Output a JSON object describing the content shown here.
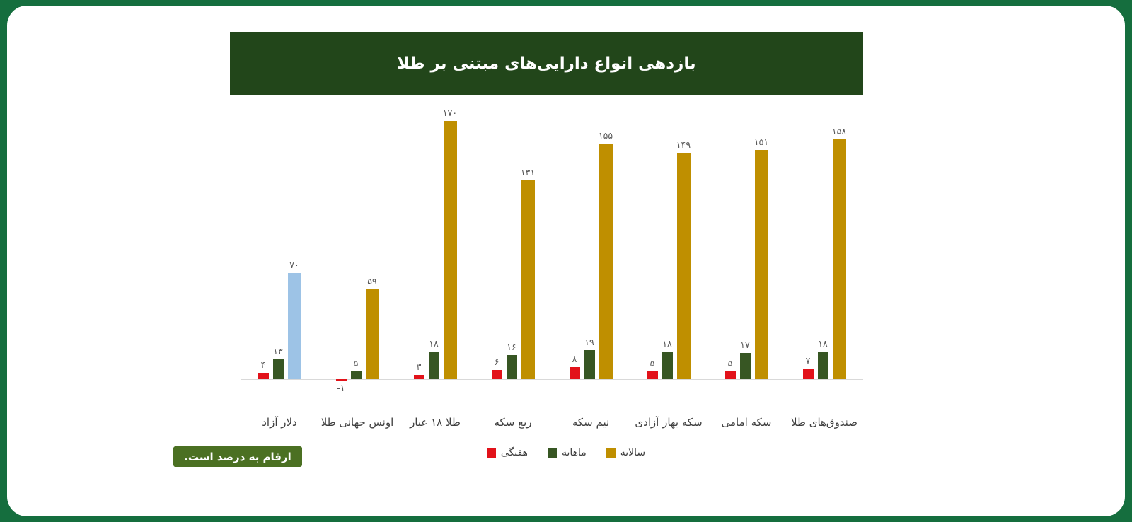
{
  "page": {
    "title": "بازدهی انواع دارایی‌های مبتنی بر طلا",
    "note": "ارقام به درصد است.",
    "colors": {
      "frame": "#156e3e",
      "card": "#ffffff",
      "title_bar": "#22461a",
      "note_box": "#4b7022",
      "axis_line": "#d9d9d9",
      "value_label": "#595959",
      "category_label": "#3f3f3f"
    }
  },
  "chart_data": {
    "type": "bar",
    "title": "بازدهی انواع دارایی‌های مبتنی بر طلا",
    "unit": "percent",
    "grid": false,
    "legend_position": "bottom",
    "ylim": [
      -5,
      175
    ],
    "categories": [
      "دلار آزاد",
      "اونس جهانی طلا",
      "طلا ۱۸ عیار",
      "ربع سکه",
      "نیم سکه",
      "سکه بهار آزادی",
      "سکه امامی",
      "صندوق‌های طلا"
    ],
    "series": [
      {
        "name": "هفتگی",
        "color": "#e2121a",
        "values": [
          4,
          -1,
          3,
          6,
          8,
          5,
          5,
          7
        ],
        "labels": [
          "۴",
          "-۱",
          "۳",
          "۶",
          "۸",
          "۵",
          "۵",
          "۷"
        ]
      },
      {
        "name": "ماهانه",
        "color": "#375623",
        "values": [
          13,
          5,
          18,
          16,
          19,
          18,
          17,
          18
        ],
        "labels": [
          "۱۳",
          "۵",
          "۱۸",
          "۱۶",
          "۱۹",
          "۱۸",
          "۱۷",
          "۱۸"
        ]
      },
      {
        "name": "سالانه",
        "color": "#bf8f00",
        "values": [
          70,
          59,
          170,
          131,
          155,
          149,
          151,
          158
        ],
        "labels": [
          "۷۰",
          "۵۹",
          "۱۷۰",
          "۱۳۱",
          "۱۵۵",
          "۱۴۹",
          "۱۵۱",
          "۱۵۸"
        ]
      }
    ],
    "color_overrides": [
      {
        "category_index": 0,
        "series": "سالانه",
        "color": "#9dc3e6"
      }
    ]
  }
}
